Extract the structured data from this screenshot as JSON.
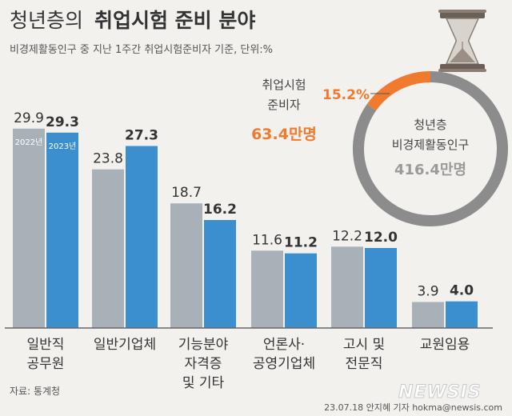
{
  "header": {
    "title_light": "청년층의",
    "title_bold": "취업시험 준비 분야",
    "subtitle": "비경제활동인구 중 지난 1주간 취업시험준비자 기준, 단위:%"
  },
  "donut": {
    "share_label": "15.2%",
    "share_value": 15.2,
    "left_label_line1": "취업시험",
    "left_label_line2": "준비자",
    "left_value": "63.4만명",
    "center_line1": "청년층",
    "center_line2": "비경제활동인구",
    "center_value": "416.4만명",
    "colors": {
      "accent": "#f07a2e",
      "rest": "#8c8c8c"
    }
  },
  "chart_data": {
    "type": "bar",
    "categories": [
      [
        "일반직",
        "공무원"
      ],
      [
        "일반기업체"
      ],
      [
        "기능분야",
        "자격증",
        "및 기타"
      ],
      [
        "언론사·",
        "공영기업체"
      ],
      [
        "고시 및",
        "전문직"
      ],
      [
        "교원임용"
      ]
    ],
    "series": [
      {
        "name": "2022년",
        "values": [
          29.9,
          23.8,
          18.7,
          11.6,
          12.2,
          3.9
        ],
        "labels": [
          "29.9",
          "23.8",
          "18.7",
          "11.6",
          "12.2",
          "3.9"
        ],
        "color": "#a9b1b8"
      },
      {
        "name": "2023년",
        "values": [
          29.3,
          27.3,
          16.2,
          11.2,
          12.0,
          4.0
        ],
        "labels": [
          "29.3",
          "27.3",
          "16.2",
          "11.2",
          "12.0",
          "4.0"
        ],
        "color": "#3c8fcf"
      }
    ],
    "ylim": [
      0,
      30
    ]
  },
  "footer": {
    "source": "자료: 통계청",
    "credit": "23.07.18 안지혜 기자 hokma@newsis.com",
    "logo": "NEWSIS"
  },
  "colors": {
    "background": "#f2f1ee",
    "baseline": "#666666",
    "title": "#333333"
  }
}
